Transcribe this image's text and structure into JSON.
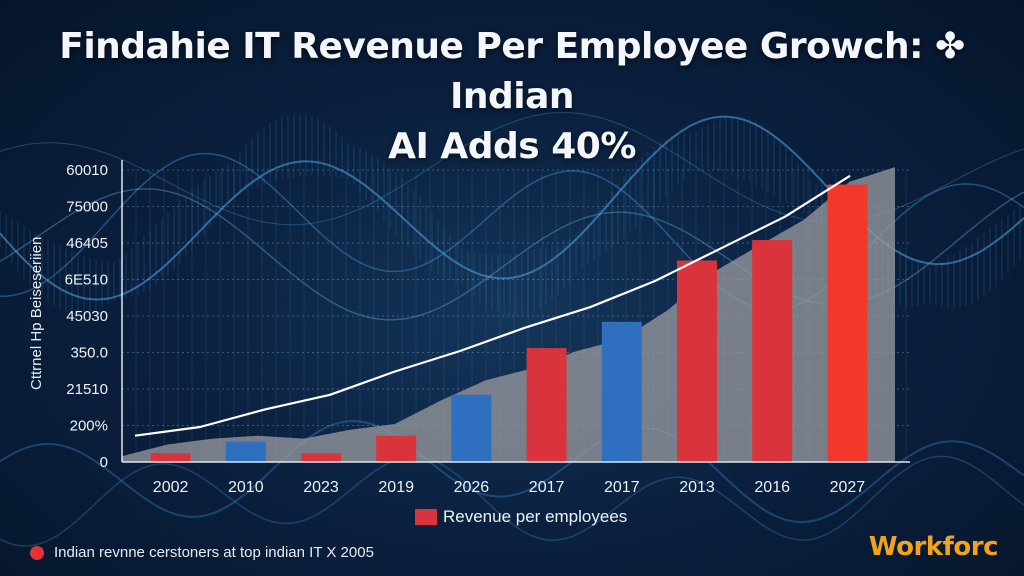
{
  "title_lines": [
    "Findahie IT Revenue Per Employee Growch: ✤ Indian",
    "AI Adds 40%"
  ],
  "ylabel": "Cttrnel Hp Beiseseriien",
  "legend_label": "Revenue per employees",
  "footnote": "Indian revnne cerstoners at top indian IT X 2005",
  "logo": "Workforc",
  "colors": {
    "red_bar": "#d9343b",
    "red_bar_highlight": "#f2372b",
    "blue_bar": "#2f6fbf",
    "area": "#8c8f96",
    "line": "#ffffff",
    "logo": "#f2a31b"
  },
  "chart_data": {
    "type": "bar",
    "categories": [
      "2002",
      "2010",
      "2023",
      "2019",
      "2026",
      "2017",
      "2017",
      "2013",
      "2016",
      "2027"
    ],
    "yticks": [
      "0",
      "200%",
      "21510",
      "350.0",
      "45030",
      "6E510",
      "46405",
      "75000",
      "60010"
    ],
    "series": [
      {
        "name": "Revenue per employees",
        "values": [
          0.3,
          0.7,
          0.3,
          0.9,
          2.3,
          3.9,
          4.8,
          6.9,
          7.6,
          9.5
        ],
        "bar_colors": [
          "red",
          "blue",
          "red",
          "red",
          "blue",
          "red",
          "blue",
          "red",
          "red",
          "red_highlight"
        ]
      }
    ],
    "trend_line": [
      0.9,
      1.2,
      1.8,
      2.3,
      3.1,
      3.8,
      4.6,
      5.3,
      6.2,
      7.3,
      8.4,
      9.8
    ],
    "area": [
      0.2,
      0.6,
      0.8,
      0.9,
      0.8,
      1.1,
      1.3,
      2.1,
      2.8,
      3.2,
      3.8,
      4.2,
      5.2,
      6.5,
      7.4,
      8.3,
      9.6,
      10.1
    ],
    "ylim": [
      0,
      10
    ],
    "grid": true
  }
}
